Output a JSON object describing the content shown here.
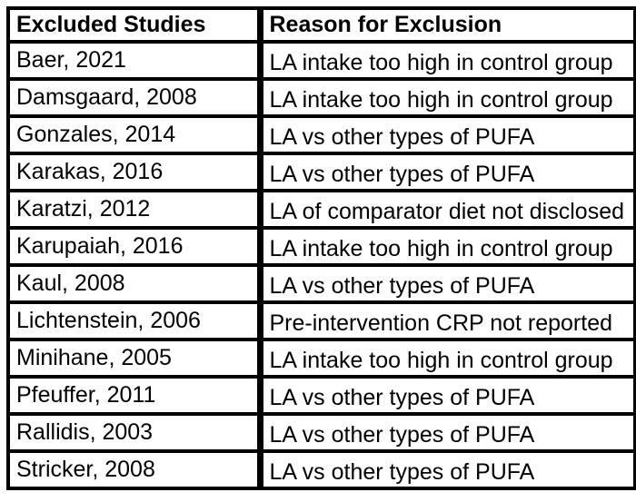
{
  "colors": {
    "background": "#ffffff",
    "border": "#000000",
    "text": "#000000"
  },
  "table": {
    "headers": {
      "study": "Excluded Studies",
      "reason": "Reason for Exclusion"
    },
    "rows": [
      {
        "study": "Baer, 2021",
        "reason": "LA intake too high in control group"
      },
      {
        "study": "Damsgaard, 2008",
        "reason": "LA intake too high in control group"
      },
      {
        "study": "Gonzales, 2014",
        "reason": "LA vs other types of PUFA"
      },
      {
        "study": "Karakas, 2016",
        "reason": "LA vs other types of PUFA"
      },
      {
        "study": "Karatzi, 2012",
        "reason": "LA of comparator diet not disclosed"
      },
      {
        "study": "Karupaiah, 2016",
        "reason": "LA intake too high in control group"
      },
      {
        "study": "Kaul, 2008",
        "reason": "LA vs other types of PUFA"
      },
      {
        "study": "Lichtenstein, 2006",
        "reason": "Pre-intervention CRP not reported"
      },
      {
        "study": "Minihane, 2005",
        "reason": "LA intake too high in control group"
      },
      {
        "study": "Pfeuffer, 2011",
        "reason": "LA vs other types of PUFA"
      },
      {
        "study": "Rallidis, 2003",
        "reason": "LA vs other types of PUFA"
      },
      {
        "study": "Stricker, 2008",
        "reason": "LA vs other types of PUFA"
      }
    ]
  }
}
